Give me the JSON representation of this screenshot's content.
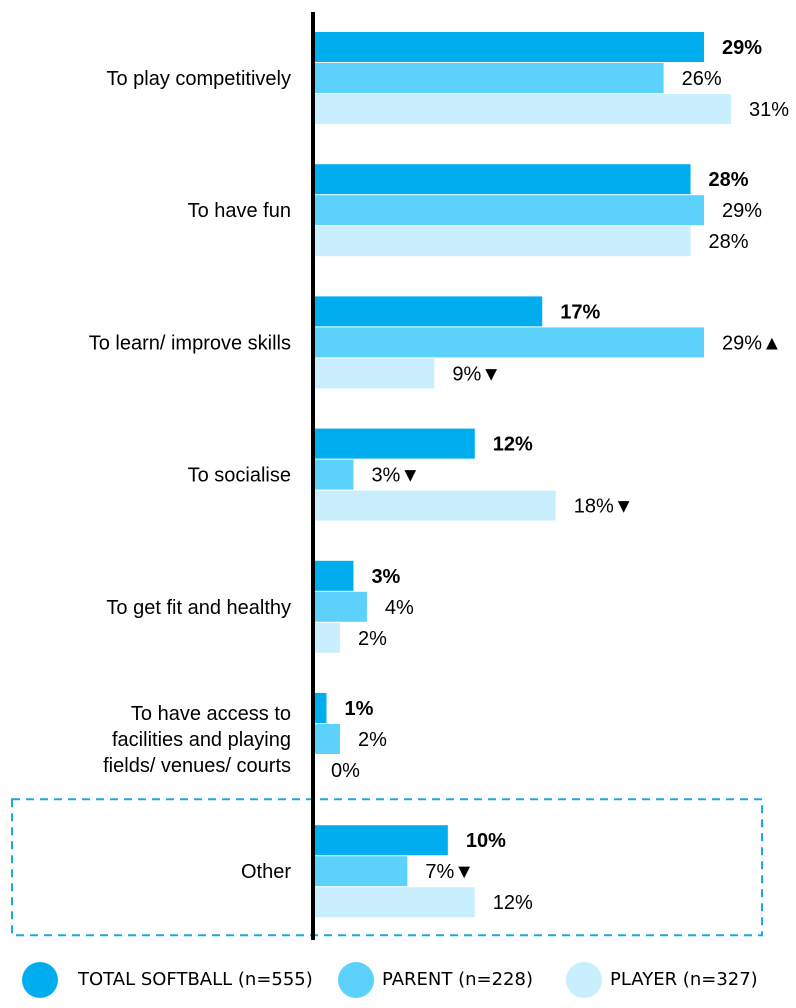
{
  "chart_data": {
    "type": "bar",
    "orientation": "horizontal",
    "categories": [
      "To play competitively",
      "To have fun",
      "To learn/ improve skills",
      "To socialise",
      "To get fit and healthy",
      "To have access to facilities and playing fields/ venues/ courts",
      "Other"
    ],
    "category_lines": [
      [
        "To play competitively"
      ],
      [
        "To have fun"
      ],
      [
        "To learn/ improve skills"
      ],
      [
        "To socialise"
      ],
      [
        "To get fit and healthy"
      ],
      [
        "To have access to",
        "facilities and playing",
        "fields/ venues/ courts"
      ],
      [
        "Other"
      ]
    ],
    "series": [
      {
        "name": "TOTAL SOFTBALL (n=555)",
        "values": [
          29,
          28,
          17,
          12,
          3,
          1,
          10
        ],
        "labels": [
          "29%",
          "28%",
          "17%",
          "12%",
          "3%",
          "1%",
          "10%"
        ],
        "markers": [
          "",
          "",
          "",
          "",
          "",
          "",
          ""
        ]
      },
      {
        "name": "PARENT (n=228)",
        "values": [
          26,
          29,
          29,
          3,
          4,
          2,
          7
        ],
        "labels": [
          "26%",
          "29%",
          "29%",
          "3%",
          "4%",
          "2%",
          "7%"
        ],
        "markers": [
          "",
          "",
          "▲",
          "▼",
          "",
          "",
          "▼"
        ]
      },
      {
        "name": "PLAYER (n=327)",
        "values": [
          31,
          28,
          9,
          18,
          2,
          0,
          12
        ],
        "labels": [
          "31%",
          "28%",
          "9%",
          "18%",
          "2%",
          "0%",
          "12%"
        ],
        "markers": [
          "",
          "",
          "▼",
          "▼",
          "",
          "",
          ""
        ]
      }
    ],
    "xlim": [
      0,
      31
    ],
    "legend_position": "bottom",
    "colors": [
      "#00aeef",
      "#5bd1fc",
      "#c9efff"
    ],
    "highlight_category": "Other",
    "highlight_border_color": "#1ba8e0"
  }
}
